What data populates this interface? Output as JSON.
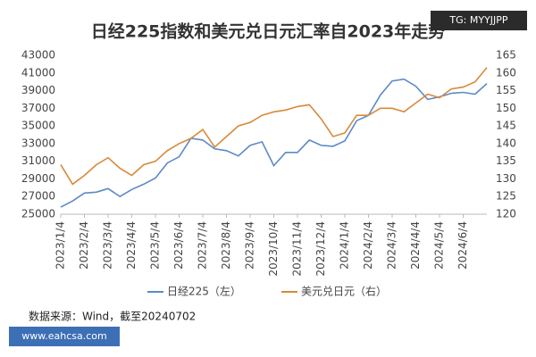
{
  "chart_data": {
    "type": "line",
    "title": "日经225指数和美元兑日元汇率自2023年走势",
    "watermark": "TG: MYYJJPP",
    "note": "数据来源：Wind，截至20240702",
    "site": "www.eahcsa.com",
    "categories": [
      "2023/1/4",
      null,
      "2023/2/4",
      null,
      "2023/3/4",
      null,
      "2023/4/4",
      null,
      "2023/5/4",
      null,
      "2023/6/4",
      null,
      "2023/7/4",
      null,
      "2023/8/4",
      null,
      "2023/9/4",
      null,
      "2023/10/4",
      null,
      "2023/11/4",
      null,
      "2023/12/4",
      null,
      "2024/1/4",
      null,
      "2024/2/4",
      null,
      "2024/3/4",
      null,
      "2024/4/4",
      null,
      "2024/5/4",
      null,
      "2024/6/4",
      null,
      null
    ],
    "series": [
      {
        "name": "日经225（左）",
        "color": "#5b8ac6",
        "axis": "y",
        "values": [
          25800,
          26500,
          27400,
          27500,
          27900,
          27000,
          27800,
          28400,
          29100,
          30800,
          31500,
          33600,
          33400,
          32400,
          32200,
          31600,
          32800,
          33200,
          30500,
          32000,
          32000,
          33400,
          32800,
          32700,
          33300,
          35600,
          36200,
          38500,
          40100,
          40300,
          39500,
          38000,
          38300,
          38700,
          38800,
          38600,
          39800
        ]
      },
      {
        "name": "美元兑日元（右）",
        "color": "#d9893a",
        "axis": "y2",
        "values": [
          134,
          128.5,
          131,
          134,
          136,
          133,
          131,
          134,
          135,
          138,
          140,
          141.5,
          144,
          139,
          142,
          145,
          146,
          148,
          149,
          149.5,
          150.5,
          151,
          147,
          142,
          143,
          148,
          148,
          150,
          150,
          149,
          151.5,
          154,
          153,
          155.5,
          156,
          157.5,
          161.5
        ]
      }
    ],
    "ylim": [
      25000,
      43000
    ],
    "yticks": [
      25000,
      27000,
      29000,
      31000,
      33000,
      35000,
      37000,
      39000,
      41000,
      43000
    ],
    "y2lim": [
      120,
      165
    ],
    "y2ticks": [
      120,
      125,
      130,
      135,
      140,
      145,
      150,
      155,
      160,
      165
    ]
  }
}
